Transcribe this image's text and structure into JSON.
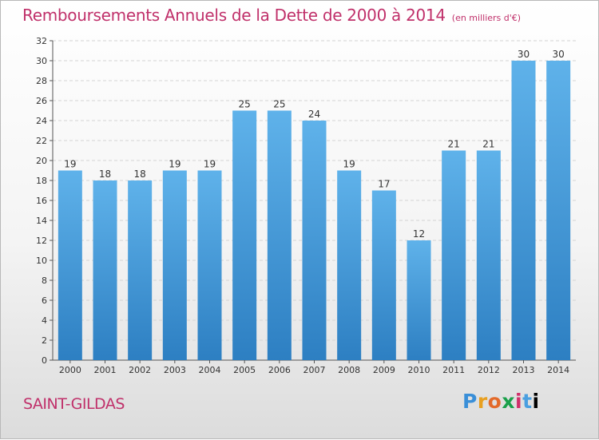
{
  "header": {
    "title": "Remboursements Annuels de la Dette de 2000 à 2014",
    "subtitle": "(en milliers d'€)"
  },
  "footer": {
    "place": "SAINT-GILDAS",
    "logo_text": "Proxiti"
  },
  "chart_data": {
    "type": "bar",
    "title": "Remboursements Annuels de la Dette de 2000 à 2014",
    "subtitle": "(en milliers d'€)",
    "xlabel": "",
    "ylabel": "",
    "categories": [
      "2000",
      "2001",
      "2002",
      "2003",
      "2004",
      "2005",
      "2006",
      "2007",
      "2008",
      "2009",
      "2010",
      "2011",
      "2012",
      "2013",
      "2014"
    ],
    "values": [
      19,
      18,
      18,
      19,
      19,
      25,
      25,
      24,
      19,
      17,
      12,
      21,
      21,
      30,
      30
    ],
    "ylim": [
      0,
      32
    ],
    "ytick_step": 2,
    "grid": true,
    "bar_color": "#4aa3e0"
  }
}
